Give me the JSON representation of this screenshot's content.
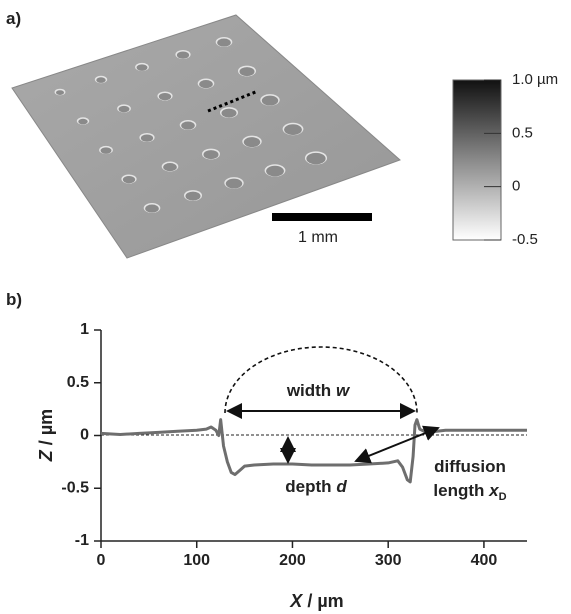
{
  "panel_a": {
    "label": "a)",
    "scale_bar": "1 mm",
    "colorbar": {
      "ylim": [
        -0.5,
        1.0
      ],
      "yticks": [
        {
          "value": 1.0,
          "label": "1.0 µm"
        },
        0.5,
        0,
        -0.5
      ]
    }
  },
  "chart_data": {
    "type": "line",
    "panel_label": "b)",
    "xlabel": [
      "X",
      "/ µm"
    ],
    "ylabel": [
      "Z",
      "/ µm"
    ],
    "xlim": [
      0,
      445
    ],
    "ylim": [
      -1,
      1
    ],
    "xticks": [
      0,
      100,
      200,
      300,
      400
    ],
    "yticks": [
      1,
      0.5,
      0,
      -0.5,
      -1
    ],
    "annotations": {
      "width": [
        "width",
        "w"
      ],
      "depth": [
        "depth",
        "d"
      ],
      "diffusion": [
        "diffusion",
        "length",
        "x",
        "D"
      ]
    },
    "x": [
      0,
      20,
      40,
      60,
      80,
      100,
      110,
      115,
      120,
      123,
      125,
      128,
      132,
      136,
      140,
      145,
      150,
      160,
      180,
      200,
      220,
      240,
      260,
      280,
      300,
      310,
      315,
      320,
      323,
      326,
      328,
      330,
      333,
      340,
      360,
      380,
      400,
      420,
      445
    ],
    "series": [
      {
        "color": "#6e6e6e",
        "values": [
          0.02,
          0.01,
          0.02,
          0.03,
          0.04,
          0.05,
          0.06,
          0.08,
          0.05,
          0.0,
          0.15,
          -0.1,
          -0.25,
          -0.35,
          -0.37,
          -0.33,
          -0.29,
          -0.28,
          -0.27,
          -0.27,
          -0.28,
          -0.28,
          -0.28,
          -0.27,
          -0.26,
          -0.24,
          -0.3,
          -0.42,
          -0.44,
          -0.2,
          0.1,
          0.15,
          0.06,
          0.03,
          0.05,
          0.05,
          0.05,
          0.05,
          0.05
        ]
      }
    ]
  }
}
